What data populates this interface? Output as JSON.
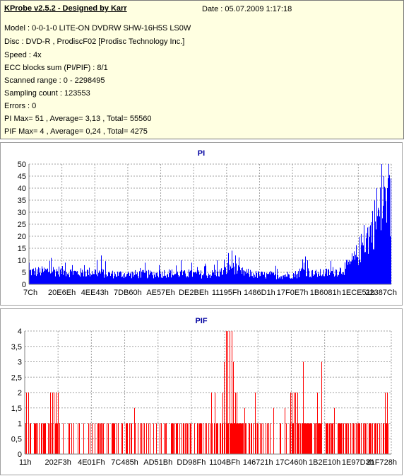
{
  "header": {
    "title": "KProbe v2.5.2 - Designed by Karr",
    "date": "Date : 05.07.2009 1:17:18"
  },
  "info_lines": [
    "Model : 0-0-1-0 LITE-ON DVDRW SHW-16H5S  LS0W",
    "Disc : DVD-R , ProdiscF02 [Prodisc Technology Inc.]",
    "Speed : 4x",
    "ECC blocks sum (PI/PIF) : 8/1",
    "Scanned range : 0 - 2298495",
    "Sampling count : 123553",
    "Errors : 0",
    "PI Max= 51 , Average= 3,13 , Total= 55560",
    "PIF Max= 4 , Average= 0,24 , Total= 4275"
  ],
  "colors": {
    "pi_bars": "#0000ff",
    "pif_bars": "#ff0000",
    "grid": "#a0a0a0",
    "info_bg": "#ffffe1"
  },
  "chart_data": [
    {
      "type": "bar",
      "title": "PI",
      "ylim": [
        0,
        50
      ],
      "yticks": [
        0,
        5,
        10,
        15,
        20,
        25,
        30,
        35,
        40,
        45,
        50
      ],
      "xticks": [
        "7Ch",
        "20E6Eh",
        "4EE43h",
        "7DB60h",
        "AE57Eh",
        "DE2BEh",
        "11195Fh",
        "1486D1h",
        "17F0E7h",
        "1B6081h",
        "1ECE51h",
        "22387Ch"
      ],
      "grid": true,
      "max": 51,
      "average": 3.13,
      "profile": [
        [
          0.0,
          5
        ],
        [
          0.03,
          5
        ],
        [
          0.06,
          5.5
        ],
        [
          0.1,
          5
        ],
        [
          0.14,
          4.5
        ],
        [
          0.18,
          5
        ],
        [
          0.22,
          4
        ],
        [
          0.26,
          4
        ],
        [
          0.3,
          4
        ],
        [
          0.34,
          4
        ],
        [
          0.38,
          4.5
        ],
        [
          0.42,
          4
        ],
        [
          0.46,
          4
        ],
        [
          0.5,
          4
        ],
        [
          0.54,
          5
        ],
        [
          0.56,
          8
        ],
        [
          0.58,
          5
        ],
        [
          0.62,
          4
        ],
        [
          0.66,
          3.5
        ],
        [
          0.7,
          3.5
        ],
        [
          0.74,
          4
        ],
        [
          0.76,
          6
        ],
        [
          0.78,
          4
        ],
        [
          0.82,
          4.5
        ],
        [
          0.86,
          5.5
        ],
        [
          0.88,
          7
        ],
        [
          0.9,
          10
        ],
        [
          0.92,
          15
        ],
        [
          0.94,
          20
        ],
        [
          0.96,
          26
        ],
        [
          0.98,
          30
        ],
        [
          1.0,
          32
        ]
      ],
      "peaks": [
        [
          0.0,
          9
        ],
        [
          0.1,
          9
        ],
        [
          0.2,
          12
        ],
        [
          0.32,
          9
        ],
        [
          0.36,
          8
        ],
        [
          0.42,
          10
        ],
        [
          0.45,
          9
        ],
        [
          0.52,
          10
        ],
        [
          0.55,
          13
        ],
        [
          0.56,
          14
        ],
        [
          0.57,
          12
        ],
        [
          0.76,
          9
        ],
        [
          0.77,
          10
        ],
        [
          0.96,
          40
        ],
        [
          0.975,
          51
        ],
        [
          0.98,
          45
        ],
        [
          0.99,
          40
        ],
        [
          1.0,
          44
        ]
      ]
    },
    {
      "type": "bar",
      "title": "PIF",
      "ylim": [
        0,
        4
      ],
      "yticks": [
        0,
        0.5,
        1,
        1.5,
        2,
        2.5,
        3,
        3.5,
        4
      ],
      "ytick_labels": [
        "0",
        "0,5",
        "1",
        "1,5",
        "2",
        "2,5",
        "3",
        "3,5",
        "4"
      ],
      "xticks": [
        "11h",
        "202F3h",
        "4E01Fh",
        "7C485h",
        "AD51Bh",
        "DD98Fh",
        "1104BFh",
        "146721h",
        "17C460h",
        "1B2E10h",
        "1E97D3h",
        "21F728h"
      ],
      "grid": true,
      "max": 4,
      "average": 0.24,
      "density": [
        [
          0.0,
          0.45
        ],
        [
          0.1,
          0.35
        ],
        [
          0.2,
          0.35
        ],
        [
          0.3,
          0.35
        ],
        [
          0.4,
          0.35
        ],
        [
          0.5,
          0.45
        ],
        [
          0.54,
          0.8
        ],
        [
          0.57,
          0.9
        ],
        [
          0.6,
          0.4
        ],
        [
          0.7,
          0.35
        ],
        [
          0.74,
          0.7
        ],
        [
          0.78,
          0.8
        ],
        [
          0.82,
          0.6
        ],
        [
          0.9,
          0.5
        ],
        [
          0.95,
          0.4
        ],
        [
          1.0,
          0.35
        ]
      ],
      "peaks": [
        [
          0.004,
          2
        ],
        [
          0.01,
          2
        ],
        [
          0.07,
          2
        ],
        [
          0.075,
          2
        ],
        [
          0.08,
          2
        ],
        [
          0.085,
          2
        ],
        [
          0.09,
          2
        ],
        [
          0.3,
          1.5
        ],
        [
          0.51,
          2
        ],
        [
          0.52,
          2
        ],
        [
          0.54,
          2
        ],
        [
          0.545,
          3
        ],
        [
          0.55,
          4
        ],
        [
          0.555,
          4
        ],
        [
          0.56,
          4
        ],
        [
          0.565,
          4
        ],
        [
          0.57,
          3
        ],
        [
          0.575,
          2
        ],
        [
          0.58,
          2
        ],
        [
          0.6,
          1.5
        ],
        [
          0.63,
          2
        ],
        [
          0.68,
          1.5
        ],
        [
          0.71,
          1.5
        ],
        [
          0.725,
          2
        ],
        [
          0.73,
          2
        ],
        [
          0.735,
          2
        ],
        [
          0.74,
          2
        ],
        [
          0.745,
          2
        ],
        [
          0.75,
          2
        ],
        [
          0.76,
          3
        ],
        [
          0.8,
          2
        ],
        [
          0.81,
          3
        ],
        [
          0.845,
          1.5
        ],
        [
          0.985,
          2
        ],
        [
          0.99,
          2
        ]
      ]
    }
  ]
}
